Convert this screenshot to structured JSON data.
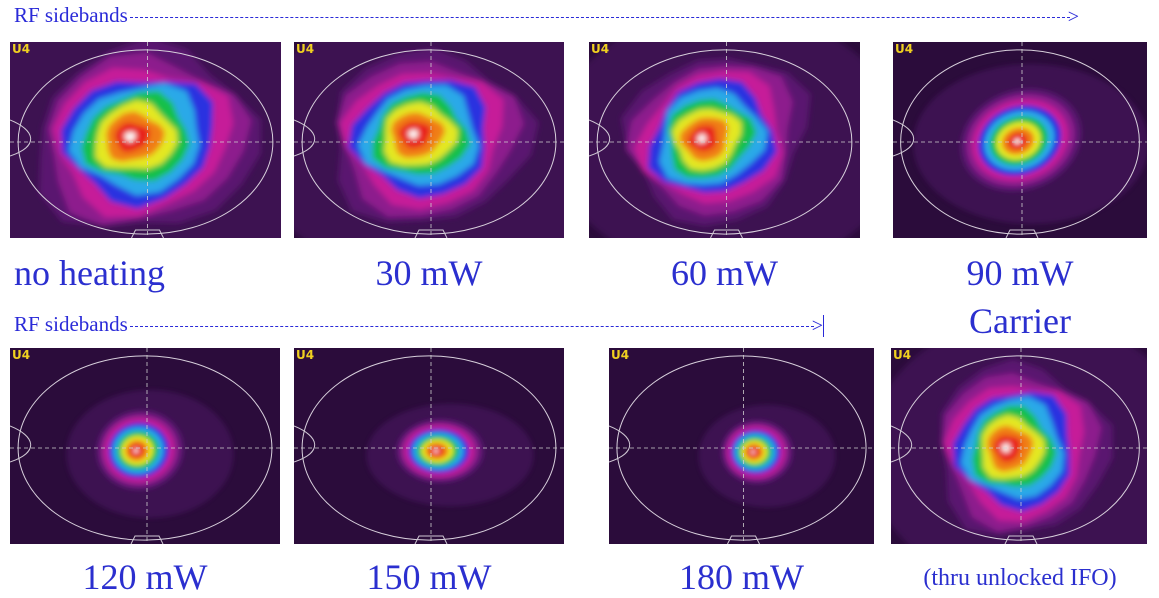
{
  "row1_heading": "RF sidebands",
  "row2_heading": "RF sidebands",
  "carrier_label": "Carrier",
  "panels": [
    {
      "label": "no heating",
      "corner_tag": "U4"
    },
    {
      "label": "30 mW",
      "corner_tag": "U4"
    },
    {
      "label": "60 mW",
      "corner_tag": "U4"
    },
    {
      "label": "90 mW",
      "corner_tag": "U4"
    },
    {
      "label": "120 mW",
      "corner_tag": "U4"
    },
    {
      "label": "150 mW",
      "corner_tag": "U4"
    },
    {
      "label": "180 mW",
      "corner_tag": "U4"
    },
    {
      "label": "(thru unlocked IFO)",
      "corner_tag": "U4"
    }
  ],
  "colors": {
    "label": "#2b2fcf",
    "arrow": "#2a2ad8",
    "panel_bg": "#2b0c3b"
  }
}
